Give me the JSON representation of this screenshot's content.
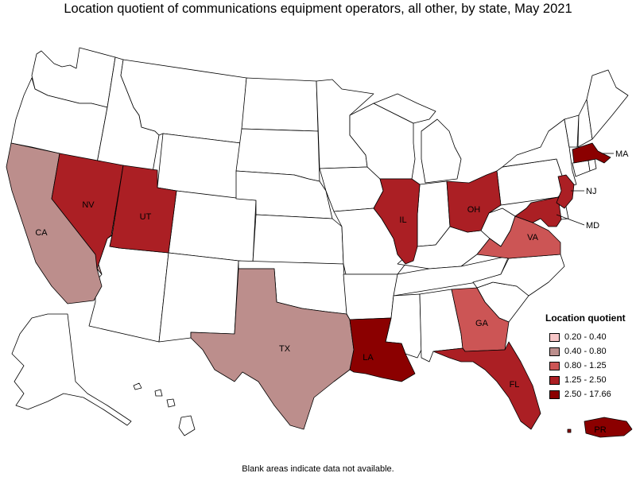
{
  "title": "Location quotient of communications equipment operators, all other, by state, May 2021",
  "legend": {
    "title": "Location quotient",
    "items": [
      {
        "label": "0.20 - 0.40",
        "color": "#f7c6c7"
      },
      {
        "label": "0.40 - 0.80",
        "color": "#bc8e8c"
      },
      {
        "label": "0.80 - 1.25",
        "color": "#cc5555"
      },
      {
        "label": "1.25 - 2.50",
        "color": "#ab1f24"
      },
      {
        "label": "2.50 - 17.66",
        "color": "#8b0000"
      }
    ]
  },
  "states": [
    {
      "abbr": "CA",
      "bin": 1
    },
    {
      "abbr": "TX",
      "bin": 1
    },
    {
      "abbr": "GA",
      "bin": 2
    },
    {
      "abbr": "VA",
      "bin": 2
    },
    {
      "abbr": "NV",
      "bin": 3
    },
    {
      "abbr": "UT",
      "bin": 3
    },
    {
      "abbr": "IL",
      "bin": 3
    },
    {
      "abbr": "OH",
      "bin": 3
    },
    {
      "abbr": "FL",
      "bin": 3
    },
    {
      "abbr": "NJ",
      "bin": 3
    },
    {
      "abbr": "MD",
      "bin": 3
    },
    {
      "abbr": "LA",
      "bin": 4
    },
    {
      "abbr": "MA",
      "bin": 4
    },
    {
      "abbr": "PR",
      "bin": 4
    }
  ],
  "footnote": "Blank areas indicate data not available."
}
